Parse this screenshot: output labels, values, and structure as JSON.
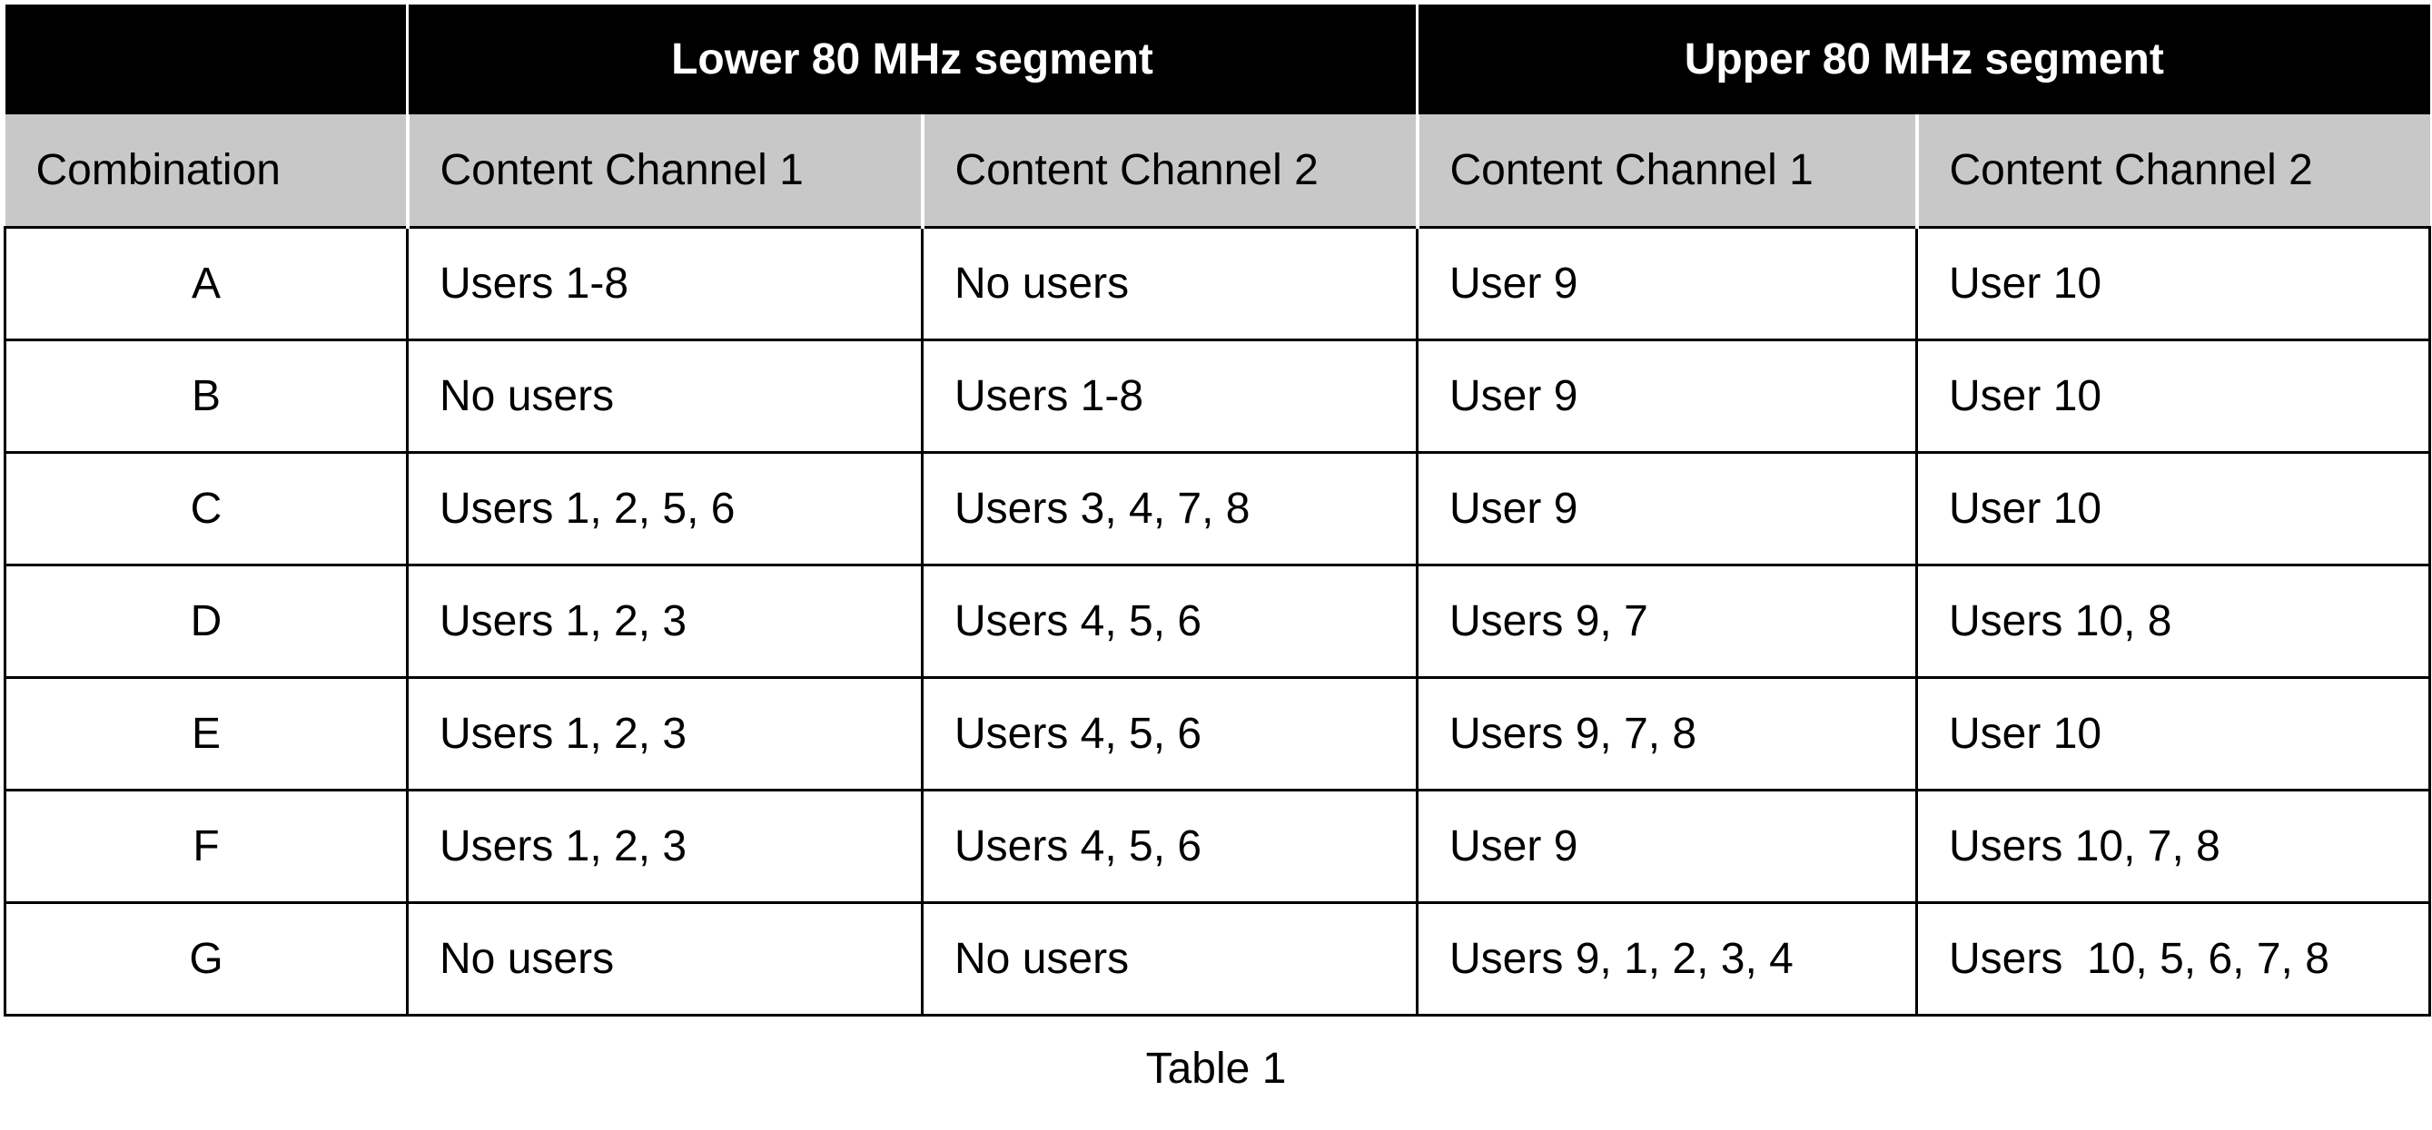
{
  "header": {
    "groups": [
      "Lower 80 MHz segment",
      "Upper 80 MHz segment"
    ]
  },
  "table": {
    "columns": [
      "Combination",
      "Content Channel 1",
      "Content Channel 2",
      "Content Channel 1",
      "Content Channel 2"
    ],
    "rows": [
      [
        "A",
        "Users 1-8",
        "No users",
        "User 9",
        "User 10"
      ],
      [
        "B",
        "No users",
        "Users 1-8",
        "User 9",
        "User 10"
      ],
      [
        "C",
        "Users 1, 2, 5, 6",
        "Users 3, 4, 7, 8",
        "User 9",
        "User 10"
      ],
      [
        "D",
        "Users 1, 2, 3",
        "Users 4, 5, 6",
        "Users 9, 7",
        "Users 10, 8"
      ],
      [
        "E",
        "Users 1, 2, 3",
        "Users 4, 5, 6",
        "Users 9, 7, 8",
        "User 10"
      ],
      [
        "F",
        "Users 1, 2, 3",
        "Users 4, 5, 6",
        "User 9",
        "Users 10, 7, 8"
      ],
      [
        "G",
        "No users",
        "No users",
        "Users 9, 1, 2, 3, 4",
        "Users  10, 5, 6, 7, 8"
      ]
    ]
  },
  "caption": "Table 1"
}
